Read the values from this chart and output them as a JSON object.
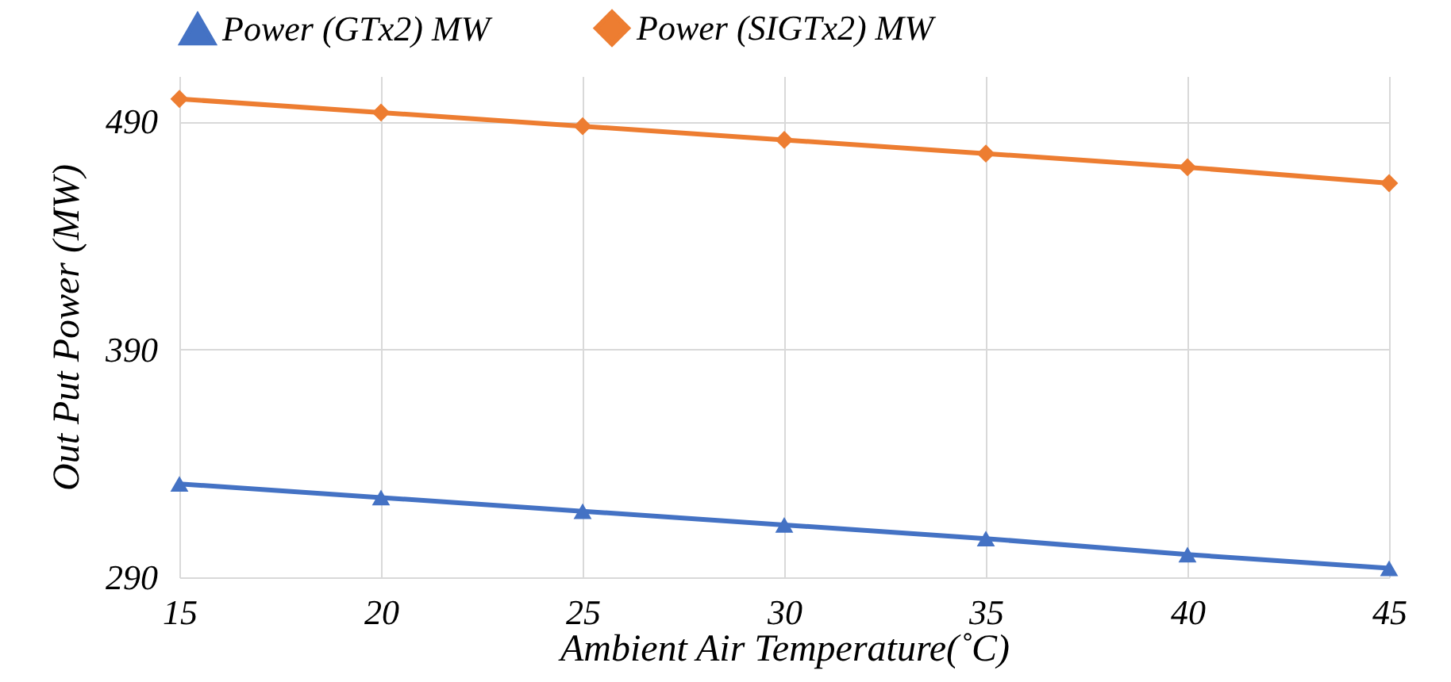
{
  "chart_data": {
    "type": "line",
    "xlabel": "Ambient Air Temperature(˚C)",
    "ylabel": "Out Put  Power (MW)",
    "categories": [
      "15",
      "20",
      "25",
      "30",
      "35",
      "40",
      "45"
    ],
    "series": [
      {
        "name": "Power (GTx2) MW",
        "color": "#4472c4",
        "marker": "triangle",
        "values": [
          331,
          325,
          319,
          313,
          307,
          300,
          294
        ]
      },
      {
        "name": "Power (SIGTx2) MW",
        "color": "#ed7d31",
        "marker": "diamond",
        "values": [
          500,
          494,
          488,
          482,
          476,
          470,
          463
        ]
      }
    ],
    "ylim": [
      290,
      510
    ],
    "yticks": [
      290,
      390,
      490
    ],
    "grid": true,
    "legend": "top"
  }
}
